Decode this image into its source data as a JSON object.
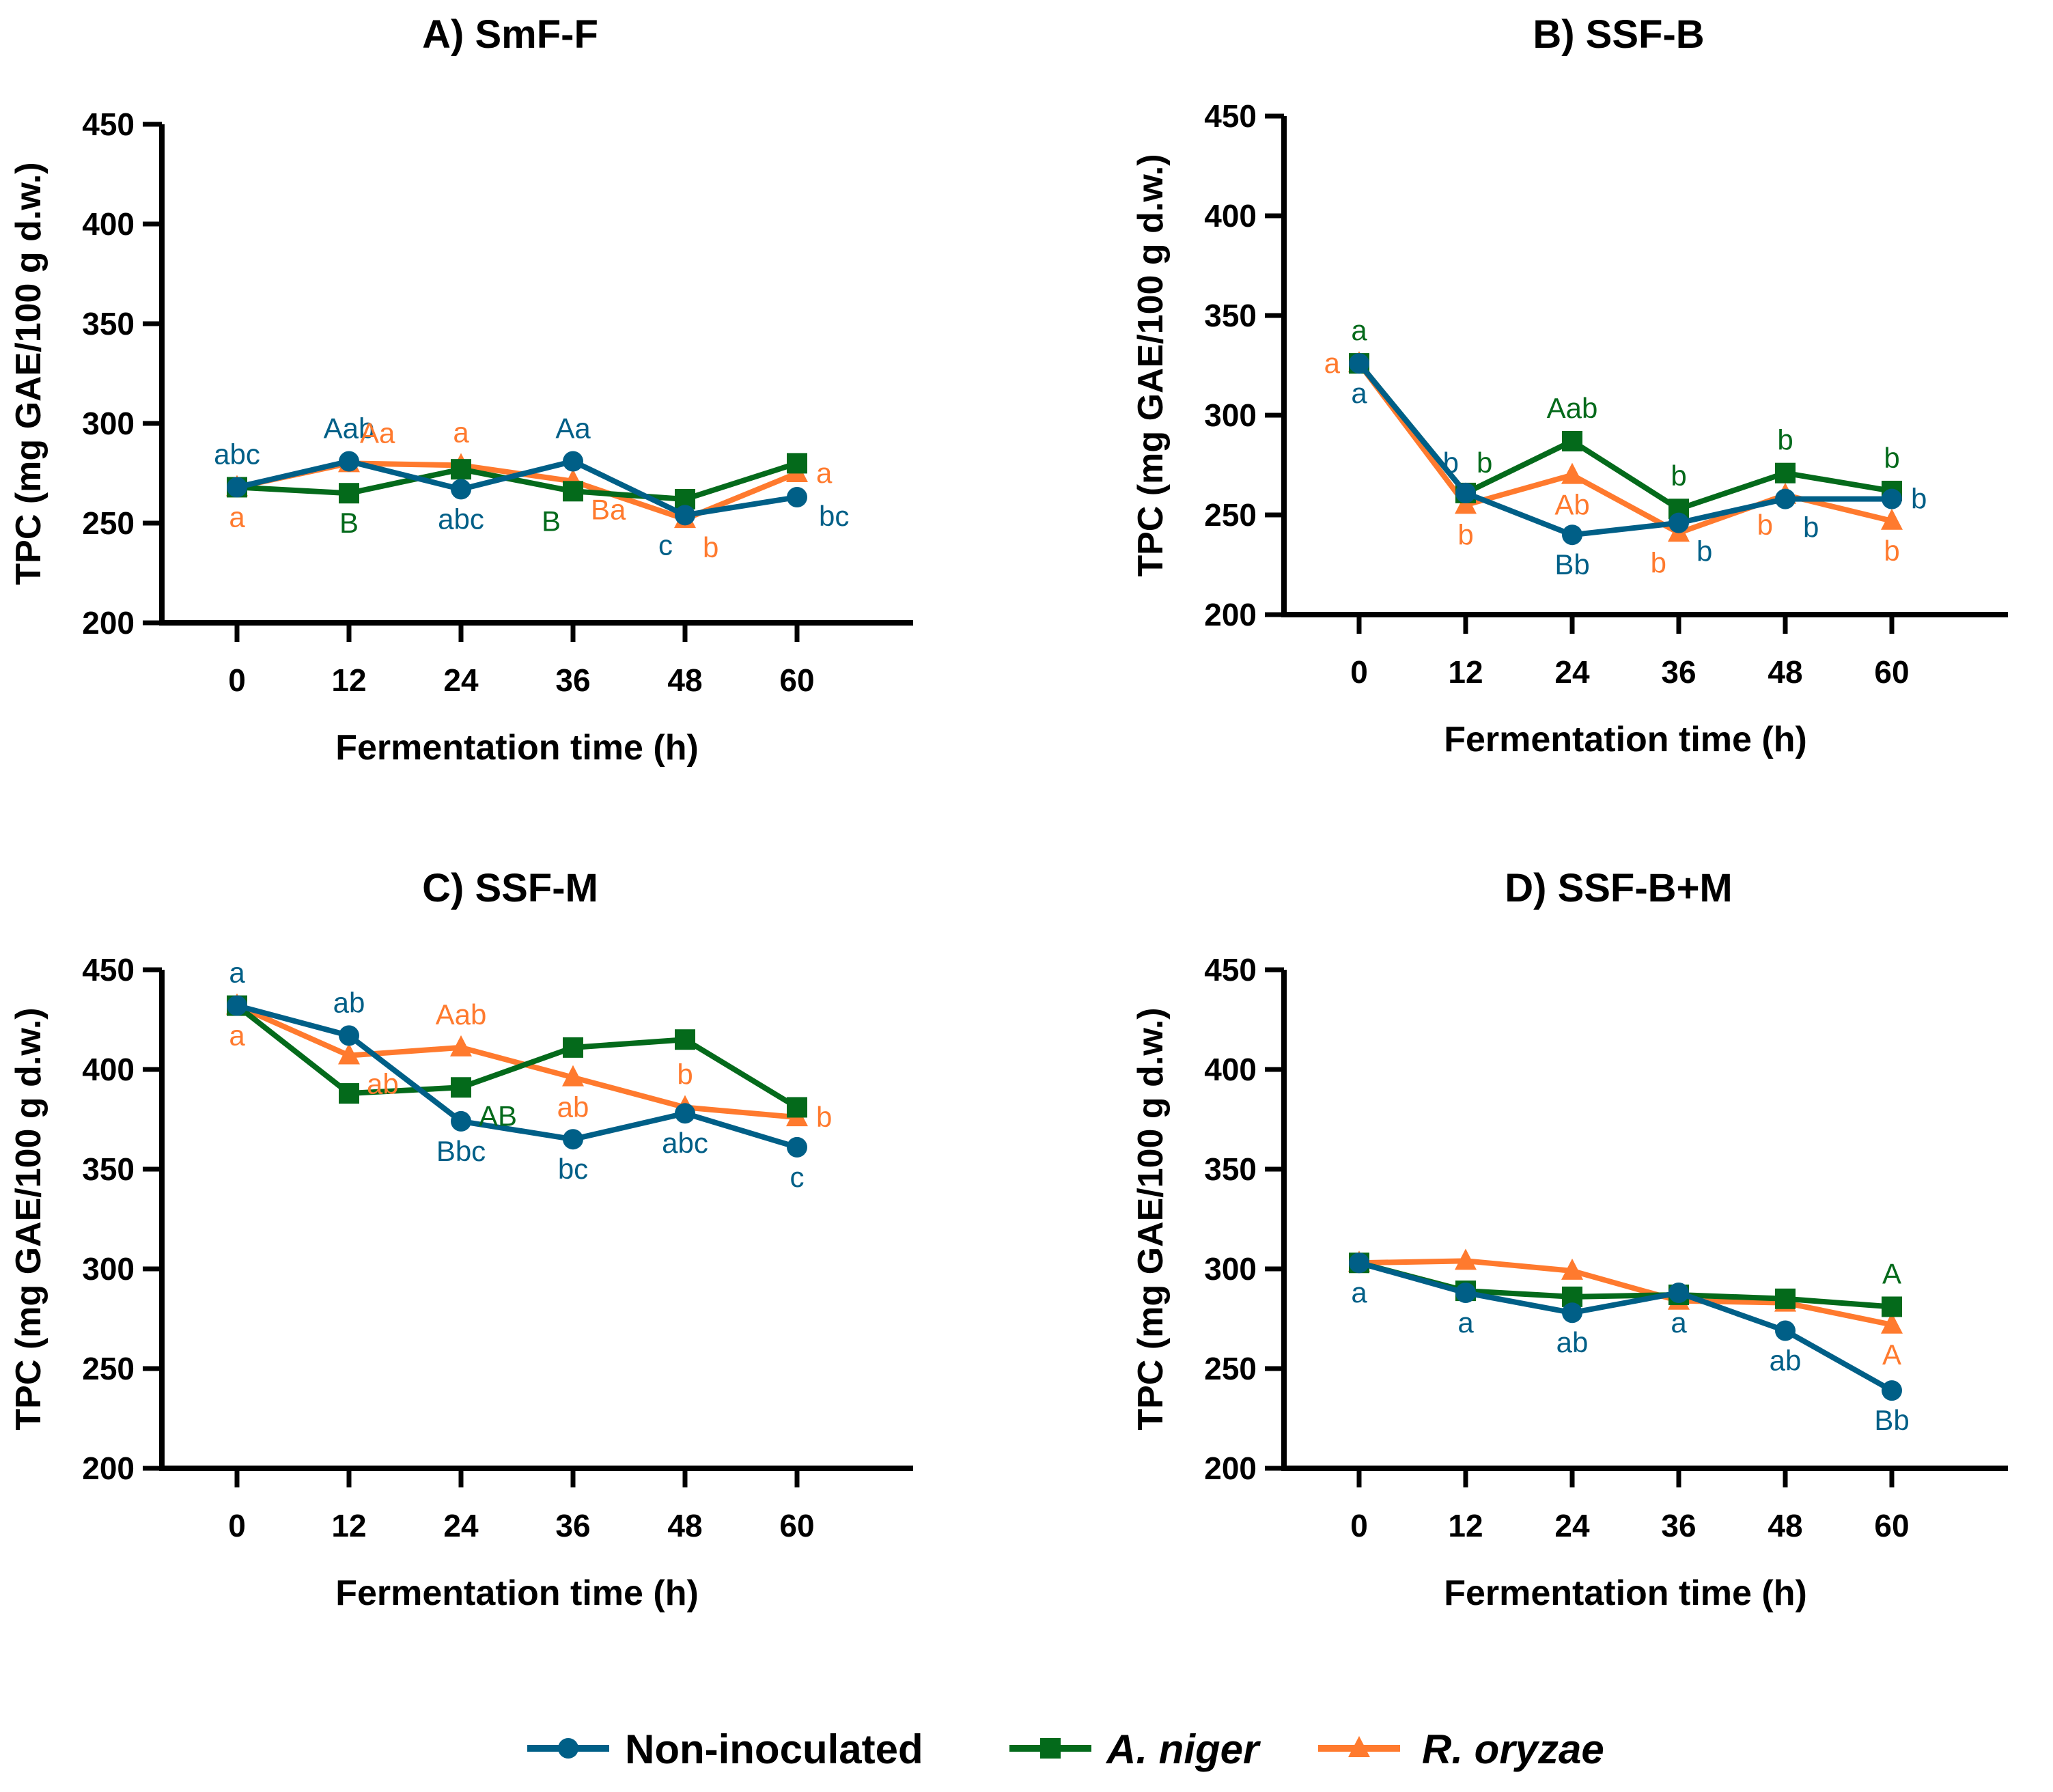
{
  "series_styles": [
    {
      "name": "Non-inoculated",
      "color": "#005F87",
      "marker": "circle",
      "italic": false
    },
    {
      "name": "A. niger",
      "color": "#046A1B",
      "marker": "square",
      "italic": true
    },
    {
      "name": "R. oryzae",
      "color": "#FF7A2E",
      "marker": "triangle",
      "italic": true
    }
  ],
  "legend": {
    "placement": "bottom-center",
    "items": [
      "Non-inoculated",
      "A. niger",
      "R. oryzae"
    ]
  },
  "chart_data": [
    {
      "type": "line",
      "title": "A) SmF-F",
      "xlabel": "Fermentation time (h)",
      "ylabel": "TPC (mg GAE/100 g d.w.)",
      "x": [
        0,
        12,
        24,
        36,
        48,
        60
      ],
      "xticks": [
        "0",
        "12",
        "24",
        "36",
        "48",
        "60"
      ],
      "ylim": [
        200,
        450
      ],
      "yticks": [
        200,
        250,
        300,
        350,
        400,
        450
      ],
      "grid": false,
      "series": [
        {
          "name": "Non-inoculated",
          "values": [
            268,
            281,
            267,
            281,
            254,
            263
          ]
        },
        {
          "name": "A. niger",
          "values": [
            268,
            265,
            277,
            266,
            262,
            280
          ]
        },
        {
          "name": "R. oryzae",
          "values": [
            268,
            280,
            279,
            271,
            252,
            275
          ]
        }
      ],
      "annotations": [
        {
          "series": "Non-inoculated",
          "x": 0,
          "text": "abc",
          "pos": "above"
        },
        {
          "series": "R. oryzae",
          "x": 0,
          "text": "a",
          "pos": "below"
        },
        {
          "series": "Non-inoculated",
          "x": 12,
          "text": "Aab",
          "pos": "above"
        },
        {
          "series": "R. oryzae",
          "x": 12,
          "text": "Aa",
          "pos": "above-right"
        },
        {
          "series": "A. niger",
          "x": 12,
          "text": "B",
          "pos": "below"
        },
        {
          "series": "R. oryzae",
          "x": 24,
          "text": "a",
          "pos": "above"
        },
        {
          "series": "Non-inoculated",
          "x": 24,
          "text": "abc",
          "pos": "below"
        },
        {
          "series": "Non-inoculated",
          "x": 36,
          "text": "Aa",
          "pos": "above"
        },
        {
          "series": "A. niger",
          "x": 36,
          "text": "B",
          "pos": "below-left"
        },
        {
          "series": "R. oryzae",
          "x": 36,
          "text": "Ba",
          "pos": "below-right"
        },
        {
          "series": "Non-inoculated",
          "x": 48,
          "text": "c",
          "pos": "below-left"
        },
        {
          "series": "R. oryzae",
          "x": 48,
          "text": "b",
          "pos": "below-right"
        },
        {
          "series": "R. oryzae",
          "x": 60,
          "text": "a",
          "pos": "right"
        },
        {
          "series": "Non-inoculated",
          "x": 60,
          "text": "bc",
          "pos": "right-low"
        }
      ]
    },
    {
      "type": "line",
      "title": "B) SSF-B",
      "xlabel": "Fermentation time (h)",
      "ylabel": "TPC (mg GAE/100 g d.w.)",
      "x": [
        0,
        12,
        24,
        36,
        48,
        60
      ],
      "xticks": [
        "0",
        "12",
        "24",
        "36",
        "48",
        "60"
      ],
      "ylim": [
        200,
        450
      ],
      "yticks": [
        200,
        250,
        300,
        350,
        400,
        450
      ],
      "grid": false,
      "series": [
        {
          "name": "Non-inoculated",
          "values": [
            326,
            261,
            240,
            246,
            258,
            258
          ]
        },
        {
          "name": "A. niger",
          "values": [
            326,
            261,
            287,
            253,
            271,
            262
          ]
        },
        {
          "name": "R. oryzae",
          "values": [
            326,
            255,
            270,
            241,
            260,
            247
          ]
        }
      ],
      "annotations": [
        {
          "series": "A. niger",
          "x": 0,
          "text": "a",
          "pos": "above"
        },
        {
          "series": "R. oryzae",
          "x": 0,
          "text": "a",
          "pos": "left"
        },
        {
          "series": "Non-inoculated",
          "x": 0,
          "text": "a",
          "pos": "below"
        },
        {
          "series": "Non-inoculated",
          "x": 12,
          "text": "b",
          "pos": "above-left"
        },
        {
          "series": "A. niger",
          "x": 12,
          "text": "b",
          "pos": "above-right"
        },
        {
          "series": "R. oryzae",
          "x": 12,
          "text": "b",
          "pos": "below"
        },
        {
          "series": "A. niger",
          "x": 24,
          "text": "Aab",
          "pos": "above"
        },
        {
          "series": "R. oryzae",
          "x": 24,
          "text": "Ab",
          "pos": "below"
        },
        {
          "series": "Non-inoculated",
          "x": 24,
          "text": "Bb",
          "pos": "below"
        },
        {
          "series": "A. niger",
          "x": 36,
          "text": "b",
          "pos": "above"
        },
        {
          "series": "R. oryzae",
          "x": 36,
          "text": "b",
          "pos": "below-left"
        },
        {
          "series": "Non-inoculated",
          "x": 36,
          "text": "b",
          "pos": "below-right"
        },
        {
          "series": "A. niger",
          "x": 48,
          "text": "b",
          "pos": "above"
        },
        {
          "series": "R. oryzae",
          "x": 48,
          "text": "b",
          "pos": "below-left"
        },
        {
          "series": "Non-inoculated",
          "x": 48,
          "text": "b",
          "pos": "below-right"
        },
        {
          "series": "A. niger",
          "x": 60,
          "text": "b",
          "pos": "above"
        },
        {
          "series": "Non-inoculated",
          "x": 60,
          "text": "b",
          "pos": "right"
        },
        {
          "series": "R. oryzae",
          "x": 60,
          "text": "b",
          "pos": "below"
        }
      ]
    },
    {
      "type": "line",
      "title": "C) SSF-M",
      "xlabel": "Fermentation time (h)",
      "ylabel": "TPC (mg GAE/100 g d.w.)",
      "x": [
        0,
        12,
        24,
        36,
        48,
        60
      ],
      "xticks": [
        "0",
        "12",
        "24",
        "36",
        "48",
        "60"
      ],
      "ylim": [
        200,
        450
      ],
      "yticks": [
        200,
        250,
        300,
        350,
        400,
        450
      ],
      "grid": false,
      "series": [
        {
          "name": "Non-inoculated",
          "values": [
            432,
            417,
            374,
            365,
            378,
            361
          ]
        },
        {
          "name": "A. niger",
          "values": [
            432,
            388,
            391,
            411,
            415,
            381
          ]
        },
        {
          "name": "R. oryzae",
          "values": [
            432,
            407,
            411,
            396,
            381,
            376
          ]
        }
      ],
      "annotations": [
        {
          "series": "Non-inoculated",
          "x": 0,
          "text": "a",
          "pos": "above"
        },
        {
          "series": "R. oryzae",
          "x": 0,
          "text": "a",
          "pos": "below"
        },
        {
          "series": "Non-inoculated",
          "x": 12,
          "text": "ab",
          "pos": "above"
        },
        {
          "series": "R. oryzae",
          "x": 12,
          "text": "ab",
          "pos": "below-right"
        },
        {
          "series": "R. oryzae",
          "x": 24,
          "text": "Aab",
          "pos": "above"
        },
        {
          "series": "A. niger",
          "x": 24,
          "text": "AB",
          "pos": "below-right"
        },
        {
          "series": "Non-inoculated",
          "x": 24,
          "text": "Bbc",
          "pos": "below"
        },
        {
          "series": "R. oryzae",
          "x": 36,
          "text": "ab",
          "pos": "below"
        },
        {
          "series": "Non-inoculated",
          "x": 36,
          "text": "bc",
          "pos": "below"
        },
        {
          "series": "R. oryzae",
          "x": 48,
          "text": "b",
          "pos": "above"
        },
        {
          "series": "Non-inoculated",
          "x": 48,
          "text": "abc",
          "pos": "below"
        },
        {
          "series": "R. oryzae",
          "x": 60,
          "text": "b",
          "pos": "right"
        },
        {
          "series": "Non-inoculated",
          "x": 60,
          "text": "c",
          "pos": "below"
        }
      ]
    },
    {
      "type": "line",
      "title": "D) SSF-B+M",
      "xlabel": "Fermentation time (h)",
      "ylabel": "TPC (mg GAE/100 g d.w.)",
      "x": [
        0,
        12,
        24,
        36,
        48,
        60
      ],
      "xticks": [
        "0",
        "12",
        "24",
        "36",
        "48",
        "60"
      ],
      "ylim": [
        200,
        450
      ],
      "yticks": [
        200,
        250,
        300,
        350,
        400,
        450
      ],
      "grid": false,
      "series": [
        {
          "name": "Non-inoculated",
          "values": [
            303,
            288,
            278,
            288,
            269,
            239
          ]
        },
        {
          "name": "A. niger",
          "values": [
            303,
            289,
            286,
            287,
            285,
            281
          ]
        },
        {
          "name": "R. oryzae",
          "values": [
            303,
            304,
            299,
            284,
            283,
            272
          ]
        }
      ],
      "annotations": [
        {
          "series": "Non-inoculated",
          "x": 0,
          "text": "a",
          "pos": "below"
        },
        {
          "series": "Non-inoculated",
          "x": 12,
          "text": "a",
          "pos": "below"
        },
        {
          "series": "Non-inoculated",
          "x": 24,
          "text": "ab",
          "pos": "below"
        },
        {
          "series": "Non-inoculated",
          "x": 36,
          "text": "a",
          "pos": "below"
        },
        {
          "series": "Non-inoculated",
          "x": 48,
          "text": "ab",
          "pos": "below"
        },
        {
          "series": "A. niger",
          "x": 60,
          "text": "A",
          "pos": "above"
        },
        {
          "series": "R. oryzae",
          "x": 60,
          "text": "A",
          "pos": "below"
        },
        {
          "series": "Non-inoculated",
          "x": 60,
          "text": "Bb",
          "pos": "below"
        }
      ]
    }
  ]
}
